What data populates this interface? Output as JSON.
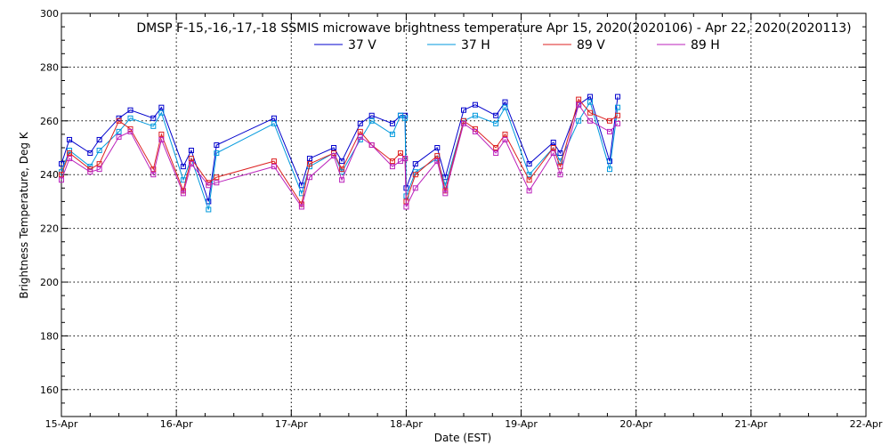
{
  "chart_data": {
    "type": "line",
    "title": "DMSP F-15,-16,-17,-18 SSMIS microwave brightness temperature Apr 15, 2020(2020106) - Apr 22, 2020(2020113)",
    "xlabel": "Date (EST)",
    "ylabel": "Brightness Temperature, Deg K",
    "x_ticks": [
      "15-Apr",
      "16-Apr",
      "17-Apr",
      "18-Apr",
      "19-Apr",
      "20-Apr",
      "21-Apr",
      "22-Apr"
    ],
    "xlim": [
      0,
      7
    ],
    "x_unit": "days since Apr 15, 2020 00:00 EST",
    "ylim": [
      150,
      300
    ],
    "y_ticks": [
      160,
      180,
      200,
      220,
      240,
      260,
      280,
      300
    ],
    "grid": true,
    "legend_position": "top-center",
    "markers": "open-square",
    "series": [
      {
        "name": "37 V",
        "color": "#0000cc",
        "points": [
          [
            0.0,
            244
          ],
          [
            0.07,
            253
          ],
          [
            0.25,
            248
          ],
          [
            0.33,
            253
          ],
          [
            0.5,
            261
          ],
          [
            0.6,
            264
          ],
          [
            0.8,
            261
          ],
          [
            0.87,
            265
          ],
          [
            1.06,
            243
          ],
          [
            1.13,
            249
          ],
          [
            1.28,
            230
          ],
          [
            1.35,
            251
          ],
          [
            1.85,
            261
          ],
          [
            2.09,
            236
          ],
          [
            2.16,
            246
          ],
          [
            2.37,
            250
          ],
          [
            2.44,
            245
          ],
          [
            2.6,
            259
          ],
          [
            2.7,
            262
          ],
          [
            2.88,
            259
          ],
          [
            2.95,
            262
          ],
          [
            2.99,
            262
          ],
          [
            3.0,
            235
          ],
          [
            3.08,
            244
          ],
          [
            3.27,
            250
          ],
          [
            3.34,
            239
          ],
          [
            3.5,
            264
          ],
          [
            3.6,
            266
          ],
          [
            3.78,
            262
          ],
          [
            3.86,
            267
          ],
          [
            4.07,
            244
          ],
          [
            4.28,
            252
          ],
          [
            4.34,
            248
          ],
          [
            4.5,
            266
          ],
          [
            4.6,
            269
          ],
          [
            4.77,
            245
          ],
          [
            4.84,
            269
          ]
        ]
      },
      {
        "name": "37 H",
        "color": "#0099dd",
        "points": [
          [
            0.0,
            241
          ],
          [
            0.07,
            249
          ],
          [
            0.25,
            243
          ],
          [
            0.33,
            249
          ],
          [
            0.5,
            256
          ],
          [
            0.6,
            261
          ],
          [
            0.8,
            258
          ],
          [
            0.87,
            263
          ],
          [
            1.06,
            238
          ],
          [
            1.13,
            246
          ],
          [
            1.28,
            227
          ],
          [
            1.35,
            248
          ],
          [
            1.85,
            259
          ],
          [
            2.09,
            233
          ],
          [
            2.16,
            243
          ],
          [
            2.37,
            248
          ],
          [
            2.44,
            241
          ],
          [
            2.6,
            253
          ],
          [
            2.7,
            260
          ],
          [
            2.88,
            255
          ],
          [
            2.95,
            262
          ],
          [
            2.99,
            261
          ],
          [
            3.0,
            232
          ],
          [
            3.08,
            241
          ],
          [
            3.27,
            246
          ],
          [
            3.34,
            236
          ],
          [
            3.5,
            260
          ],
          [
            3.6,
            262
          ],
          [
            3.78,
            259
          ],
          [
            3.86,
            265
          ],
          [
            4.07,
            240
          ],
          [
            4.28,
            250
          ],
          [
            4.34,
            245
          ],
          [
            4.5,
            260
          ],
          [
            4.6,
            267
          ],
          [
            4.77,
            242
          ],
          [
            4.84,
            265
          ]
        ]
      },
      {
        "name": "89 V",
        "color": "#dd2222",
        "points": [
          [
            0.0,
            240
          ],
          [
            0.07,
            248
          ],
          [
            0.25,
            242
          ],
          [
            0.33,
            244
          ],
          [
            0.5,
            260
          ],
          [
            0.6,
            257
          ],
          [
            0.8,
            242
          ],
          [
            0.87,
            255
          ],
          [
            1.06,
            234
          ],
          [
            1.13,
            246
          ],
          [
            1.28,
            237
          ],
          [
            1.35,
            239
          ],
          [
            1.85,
            245
          ],
          [
            2.09,
            229
          ],
          [
            2.16,
            244
          ],
          [
            2.37,
            248
          ],
          [
            2.44,
            242
          ],
          [
            2.6,
            256
          ],
          [
            2.7,
            251
          ],
          [
            2.88,
            245
          ],
          [
            2.95,
            248
          ],
          [
            2.99,
            246
          ],
          [
            3.0,
            230
          ],
          [
            3.08,
            240
          ],
          [
            3.27,
            247
          ],
          [
            3.34,
            234
          ],
          [
            3.5,
            260
          ],
          [
            3.6,
            257
          ],
          [
            3.78,
            250
          ],
          [
            3.86,
            255
          ],
          [
            4.07,
            238
          ],
          [
            4.28,
            250
          ],
          [
            4.34,
            243
          ],
          [
            4.5,
            268
          ],
          [
            4.6,
            263
          ],
          [
            4.77,
            260
          ],
          [
            4.84,
            262
          ]
        ]
      },
      {
        "name": "89 H",
        "color": "#bb22bb",
        "points": [
          [
            0.0,
            238
          ],
          [
            0.07,
            246
          ],
          [
            0.25,
            241
          ],
          [
            0.33,
            242
          ],
          [
            0.5,
            254
          ],
          [
            0.6,
            256
          ],
          [
            0.8,
            240
          ],
          [
            0.87,
            253
          ],
          [
            1.06,
            233
          ],
          [
            1.13,
            244
          ],
          [
            1.28,
            236
          ],
          [
            1.35,
            237
          ],
          [
            1.85,
            243
          ],
          [
            2.09,
            228
          ],
          [
            2.16,
            239
          ],
          [
            2.37,
            247
          ],
          [
            2.44,
            238
          ],
          [
            2.6,
            254
          ],
          [
            2.7,
            251
          ],
          [
            2.88,
            243
          ],
          [
            2.95,
            245
          ],
          [
            2.99,
            246
          ],
          [
            3.0,
            228
          ],
          [
            3.08,
            235
          ],
          [
            3.27,
            245
          ],
          [
            3.34,
            233
          ],
          [
            3.5,
            259
          ],
          [
            3.6,
            256
          ],
          [
            3.78,
            248
          ],
          [
            3.86,
            253
          ],
          [
            4.07,
            234
          ],
          [
            4.28,
            248
          ],
          [
            4.34,
            240
          ],
          [
            4.5,
            266
          ],
          [
            4.6,
            260
          ],
          [
            4.77,
            256
          ],
          [
            4.84,
            259
          ]
        ]
      }
    ]
  }
}
